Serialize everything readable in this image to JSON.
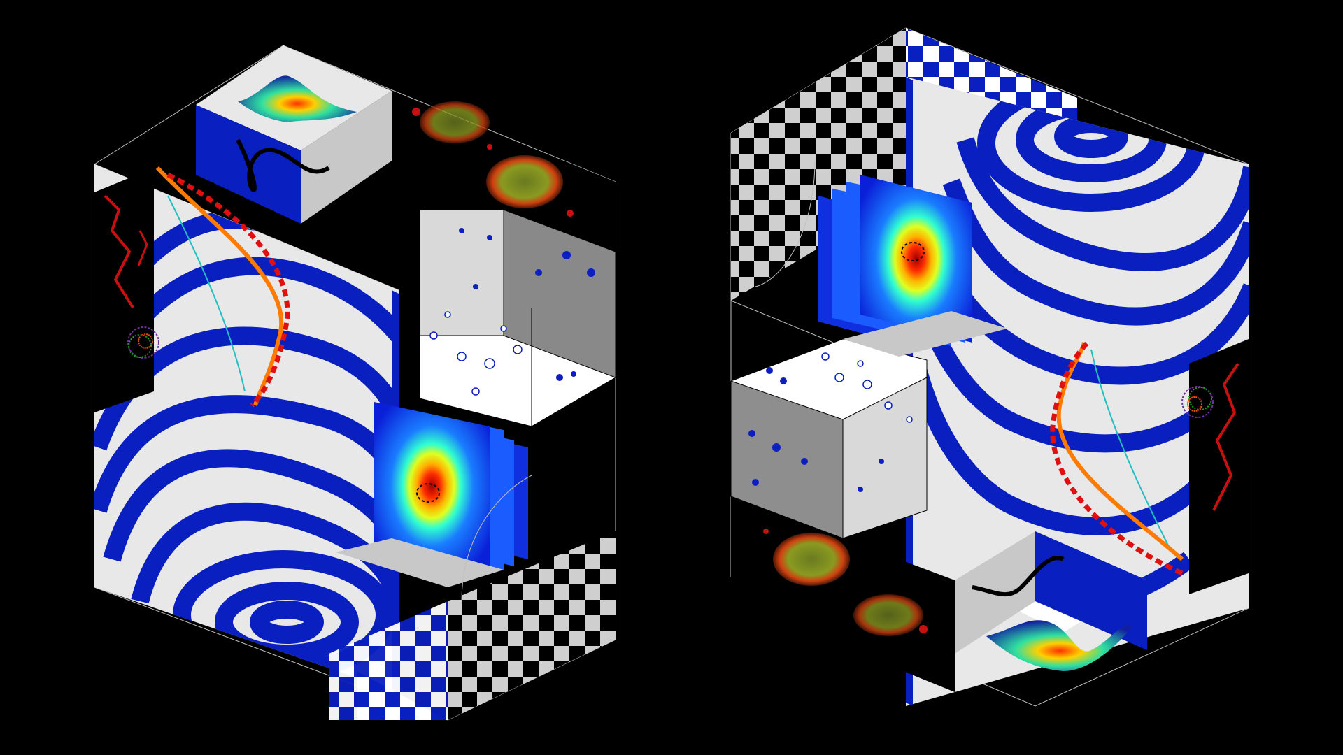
{
  "scene": {
    "background": "#000000",
    "colors": {
      "stripe_blue": "#0a1fbf",
      "panel_white": "#e8e8e8",
      "panel_gray": "#c8c8c8",
      "outline": "#bfbfbf",
      "checker_dark": "#000000",
      "checker_light": "#cfcfcf",
      "microscopy_red": "#c81010",
      "microscopy_green": "#8aa020",
      "dot_blue": "#0b1fbf",
      "curve_orange": "#ff7a00",
      "curve_red": "#e01010",
      "heat_center": "#ff2a00"
    }
  },
  "composites": [
    {
      "name": "left-cube-composite",
      "panels": [
        "contour-stripes-panel",
        "surface-plot-panel",
        "microscopy-panel",
        "scatter-3d-box",
        "heatmap-slice-stack",
        "checkerboard-panel",
        "helix-curves-panel",
        "trajectory-cluster-icon"
      ]
    },
    {
      "name": "right-cube-composite",
      "panels": [
        "contour-stripes-panel",
        "checkerboard-panel",
        "heatmap-slice-stack",
        "scatter-3d-box",
        "microscopy-panel",
        "helix-curves-panel",
        "trajectory-cluster-icon",
        "surface-plot-panel"
      ]
    }
  ]
}
